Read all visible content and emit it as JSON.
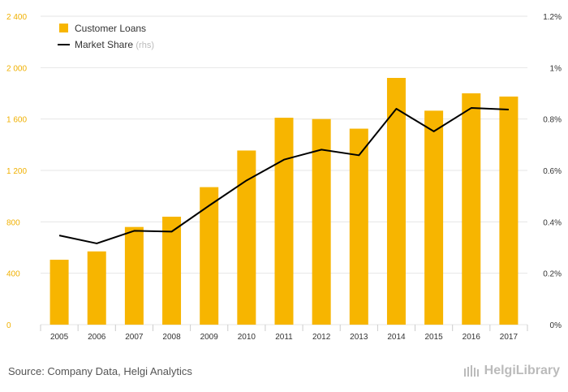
{
  "chart_data": {
    "type": "bar+line",
    "categories": [
      "2005",
      "2006",
      "2007",
      "2008",
      "2009",
      "2010",
      "2011",
      "2012",
      "2013",
      "2014",
      "2015",
      "2016",
      "2017"
    ],
    "series": [
      {
        "name": "Customer Loans",
        "type": "bar",
        "axis": "left",
        "color": "#F7B500",
        "values": [
          505,
          570,
          760,
          840,
          1070,
          1355,
          1610,
          1600,
          1525,
          1920,
          1665,
          1800,
          1775
        ]
      },
      {
        "name": "Market Share",
        "name_suffix": "(rhs)",
        "type": "line",
        "axis": "right",
        "color": "#000000",
        "values": [
          0.347,
          0.316,
          0.365,
          0.362,
          0.463,
          0.561,
          0.642,
          0.681,
          0.659,
          0.84,
          0.752,
          0.843,
          0.837
        ]
      }
    ],
    "y_left": {
      "ylim": [
        0,
        2400
      ],
      "ticks": [
        "0",
        "400",
        "800",
        "1 200",
        "1 600",
        "2 000",
        "2 400"
      ]
    },
    "y_right": {
      "ylim": [
        0,
        1.2
      ],
      "ticks": [
        "0%",
        "0.2%",
        "0.4%",
        "0.6%",
        "0.8%",
        "1%",
        "1.2%"
      ]
    },
    "grid": true,
    "legend": "top-left"
  },
  "footer": {
    "source": "Source: Company Data, Helgi Analytics",
    "brand": "HelgiLibrary"
  }
}
